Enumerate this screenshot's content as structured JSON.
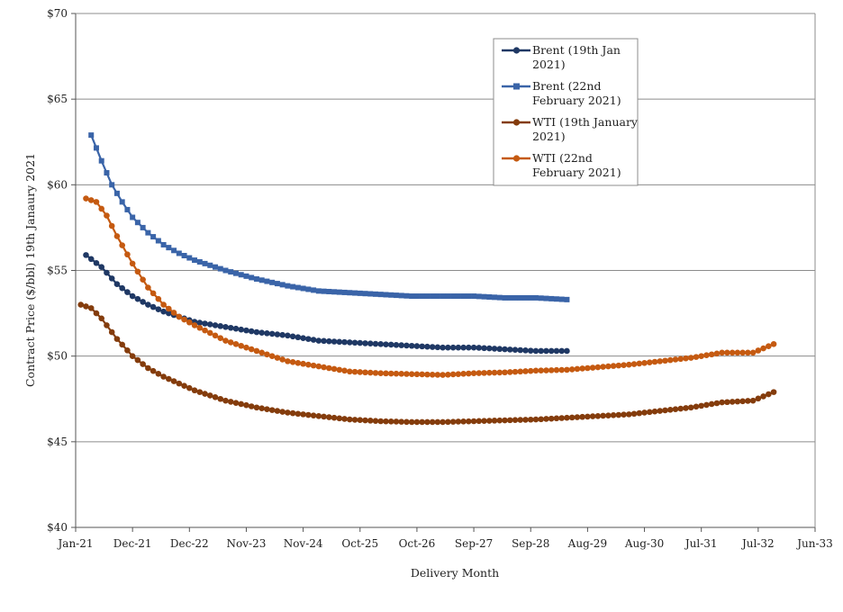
{
  "chart_data": {
    "type": "line",
    "title": "",
    "xlabel": "Delivery Month",
    "ylabel": "Contract Price ($/bbl) 19th Janaury 2021",
    "ylim": [
      40,
      70
    ],
    "y_ticks": [
      40,
      45,
      50,
      55,
      60,
      65,
      70
    ],
    "y_tick_labels": [
      "$40",
      "$45",
      "$50",
      "$55",
      "$60",
      "$65",
      "$70"
    ],
    "x_tick_labels": [
      "Jan-21",
      "Dec-21",
      "Dec-22",
      "Nov-23",
      "Nov-24",
      "Oct-25",
      "Oct-26",
      "Sep-27",
      "Sep-28",
      "Aug-29",
      "Aug-30",
      "Jul-31",
      "Jul-32",
      "Jun-33"
    ],
    "grid": "horizontal",
    "legend_position": "top-right",
    "series": [
      {
        "name": "Brent (19th Jan 2021)",
        "legend_lines": [
          "Brent (19th Jan",
          "2021)"
        ],
        "color": "#1f3864",
        "marker": "circle",
        "points": [
          [
            "2021-03",
            55.9
          ],
          [
            "2021-06",
            55.2
          ],
          [
            "2021-09",
            54.2
          ],
          [
            "2021-12",
            53.5
          ],
          [
            "2022-03",
            53.0
          ],
          [
            "2022-06",
            52.6
          ],
          [
            "2022-09",
            52.3
          ],
          [
            "2022-12",
            52.0
          ],
          [
            "2023-06",
            51.7
          ],
          [
            "2023-12",
            51.4
          ],
          [
            "2024-06",
            51.2
          ],
          [
            "2024-12",
            50.9
          ],
          [
            "2025-06",
            50.8
          ],
          [
            "2025-12",
            50.7
          ],
          [
            "2026-06",
            50.6
          ],
          [
            "2026-12",
            50.5
          ],
          [
            "2027-06",
            50.5
          ],
          [
            "2027-12",
            50.4
          ],
          [
            "2028-06",
            50.3
          ],
          [
            "2028-12",
            50.3
          ]
        ]
      },
      {
        "name": "Brent (22nd February 2021)",
        "legend_lines": [
          "Brent (22nd",
          "February 2021)"
        ],
        "color": "#3a64a8",
        "marker": "square",
        "points": [
          [
            "2021-04",
            62.9
          ],
          [
            "2021-06",
            61.4
          ],
          [
            "2021-08",
            60.0
          ],
          [
            "2021-10",
            59.0
          ],
          [
            "2021-12",
            58.1
          ],
          [
            "2022-03",
            57.2
          ],
          [
            "2022-06",
            56.5
          ],
          [
            "2022-09",
            56.0
          ],
          [
            "2022-12",
            55.6
          ],
          [
            "2023-06",
            55.0
          ],
          [
            "2023-12",
            54.5
          ],
          [
            "2024-06",
            54.1
          ],
          [
            "2024-12",
            53.8
          ],
          [
            "2025-06",
            53.7
          ],
          [
            "2025-12",
            53.6
          ],
          [
            "2026-06",
            53.5
          ],
          [
            "2026-12",
            53.5
          ],
          [
            "2027-06",
            53.5
          ],
          [
            "2027-12",
            53.4
          ],
          [
            "2028-06",
            53.4
          ],
          [
            "2028-12",
            53.3
          ]
        ]
      },
      {
        "name": "WTI (19th January 2021)",
        "legend_lines": [
          "WTI (19th January",
          "2021)"
        ],
        "color": "#843c0c",
        "marker": "circle",
        "points": [
          [
            "2021-02",
            53.0
          ],
          [
            "2021-04",
            52.8
          ],
          [
            "2021-06",
            52.2
          ],
          [
            "2021-09",
            51.0
          ],
          [
            "2021-12",
            50.0
          ],
          [
            "2022-03",
            49.3
          ],
          [
            "2022-06",
            48.8
          ],
          [
            "2022-09",
            48.4
          ],
          [
            "2022-12",
            48.0
          ],
          [
            "2023-06",
            47.4
          ],
          [
            "2023-12",
            47.0
          ],
          [
            "2024-06",
            46.7
          ],
          [
            "2024-12",
            46.5
          ],
          [
            "2025-06",
            46.3
          ],
          [
            "2025-12",
            46.2
          ],
          [
            "2026-06",
            46.15
          ],
          [
            "2026-12",
            46.15
          ],
          [
            "2027-06",
            46.2
          ],
          [
            "2027-12",
            46.25
          ],
          [
            "2028-06",
            46.3
          ],
          [
            "2028-12",
            46.4
          ],
          [
            "2029-06",
            46.5
          ],
          [
            "2029-12",
            46.6
          ],
          [
            "2030-06",
            46.8
          ],
          [
            "2030-12",
            47.0
          ],
          [
            "2031-06",
            47.3
          ],
          [
            "2031-12",
            47.4
          ],
          [
            "2032-04",
            47.9
          ]
        ]
      },
      {
        "name": "WTI (22nd February 2021)",
        "legend_lines": [
          "WTI (22nd",
          "February 2021)"
        ],
        "color": "#c55a11",
        "marker": "circle",
        "points": [
          [
            "2021-03",
            59.2
          ],
          [
            "2021-05",
            59.0
          ],
          [
            "2021-07",
            58.2
          ],
          [
            "2021-09",
            57.0
          ],
          [
            "2021-12",
            55.4
          ],
          [
            "2022-03",
            54.0
          ],
          [
            "2022-06",
            53.0
          ],
          [
            "2022-09",
            52.3
          ],
          [
            "2022-12",
            51.8
          ],
          [
            "2023-06",
            50.9
          ],
          [
            "2023-12",
            50.3
          ],
          [
            "2024-06",
            49.7
          ],
          [
            "2024-12",
            49.4
          ],
          [
            "2025-06",
            49.1
          ],
          [
            "2025-12",
            49.0
          ],
          [
            "2026-06",
            48.95
          ],
          [
            "2026-12",
            48.9
          ],
          [
            "2027-06",
            49.0
          ],
          [
            "2027-12",
            49.05
          ],
          [
            "2028-06",
            49.15
          ],
          [
            "2028-12",
            49.2
          ],
          [
            "2029-06",
            49.35
          ],
          [
            "2029-12",
            49.5
          ],
          [
            "2030-06",
            49.7
          ],
          [
            "2030-12",
            49.9
          ],
          [
            "2031-06",
            50.2
          ],
          [
            "2031-12",
            50.2
          ],
          [
            "2032-04",
            50.7
          ]
        ]
      }
    ]
  }
}
